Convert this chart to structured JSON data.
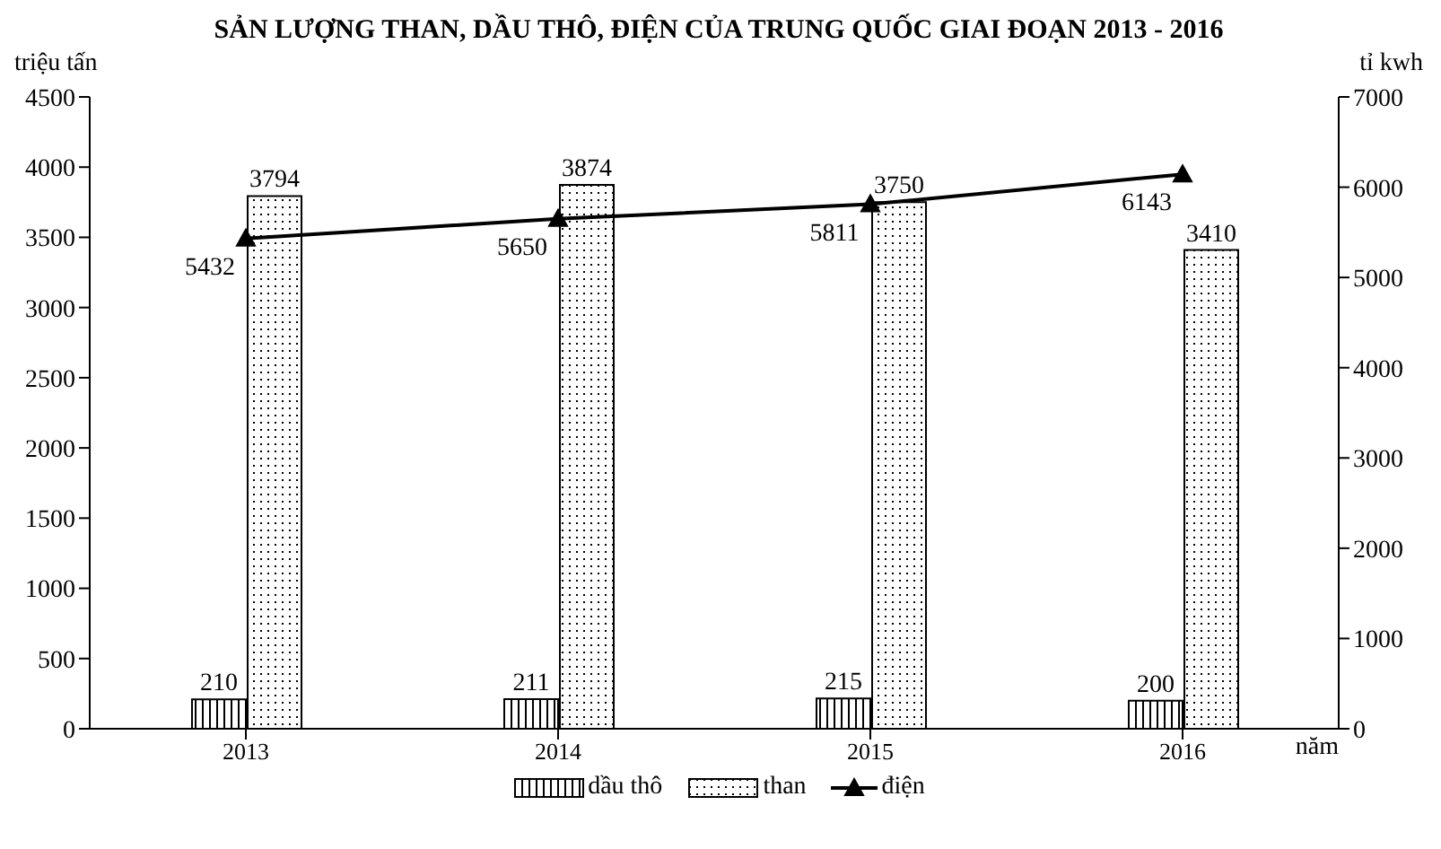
{
  "chart_data": {
    "type": "bar",
    "title": "SẢN LƯỢNG THAN, DẦU THÔ, ĐIỆN CỦA TRUNG QUỐC GIAI ĐOẠN 2013 - 2016",
    "xlabel": "năm",
    "ylabel": "triệu tấn",
    "y2label": "tỉ kwh",
    "categories": [
      "2013",
      "2014",
      "2015",
      "2016"
    ],
    "series": [
      {
        "name": "dầu thô",
        "color": "#000000",
        "values": [
          210,
          211,
          215,
          200
        ]
      },
      {
        "name": "than",
        "color": "#000000",
        "values": [
          3794,
          3874,
          3750,
          3410
        ]
      },
      {
        "name": "điện",
        "type": "line",
        "axis": "y2",
        "color": "#000000",
        "marker": "triangle",
        "values": [
          5432,
          5650,
          5811,
          6143
        ]
      }
    ],
    "ylim": [
      0,
      4500
    ],
    "yticks": [
      0,
      500,
      1000,
      1500,
      2000,
      2500,
      3000,
      3500,
      4000,
      4500
    ],
    "y2lim": [
      0,
      7000
    ],
    "y2ticks": [
      0,
      1000,
      2000,
      3000,
      4000,
      5000,
      6000,
      7000
    ],
    "data_labels": true,
    "legend": "bottom"
  }
}
